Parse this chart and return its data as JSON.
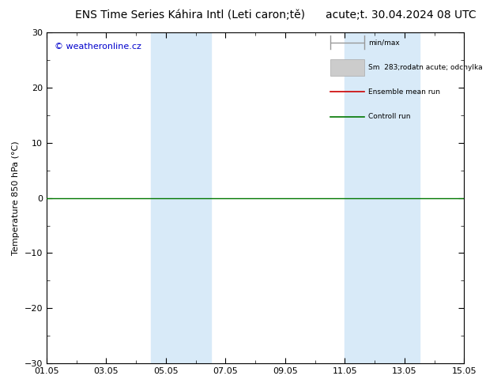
{
  "title_left": "ENS Time Series Káhira Intl (Leti caron;tě)",
  "title_right": "acute;t. 30.04.2024 08 UTC",
  "ylabel": "Temperature 850 hPa (°C)",
  "ylim": [
    -30,
    30
  ],
  "yticks": [
    -30,
    -20,
    -10,
    0,
    10,
    20,
    30
  ],
  "xtick_labels": [
    "01.05",
    "03.05",
    "05.05",
    "07.05",
    "09.05",
    "11.05",
    "13.05",
    "15.05"
  ],
  "xtick_positions": [
    0,
    2,
    4,
    6,
    8,
    10,
    12,
    14
  ],
  "xlim": [
    0,
    14
  ],
  "watermark": "© weatheronline.cz",
  "legend_minmax": "min/max",
  "legend_smean": "Sm  283;rodatn acute; odchylka",
  "legend_ensemble": "Ensemble mean run",
  "legend_control": "Controll run",
  "blue_bands": [
    {
      "x_start": 3.5,
      "x_end": 5.5
    },
    {
      "x_start": 10.0,
      "x_end": 12.5
    }
  ],
  "zero_line_y": 0,
  "background_color": "#ffffff",
  "band_color": "#d8eaf8",
  "ensemble_color": "#cc0000",
  "control_color": "#007700",
  "minmax_color": "#999999",
  "smean_color": "#cccccc",
  "title_fontsize": 10,
  "label_fontsize": 8,
  "tick_fontsize": 8,
  "watermark_color": "#0000cc"
}
